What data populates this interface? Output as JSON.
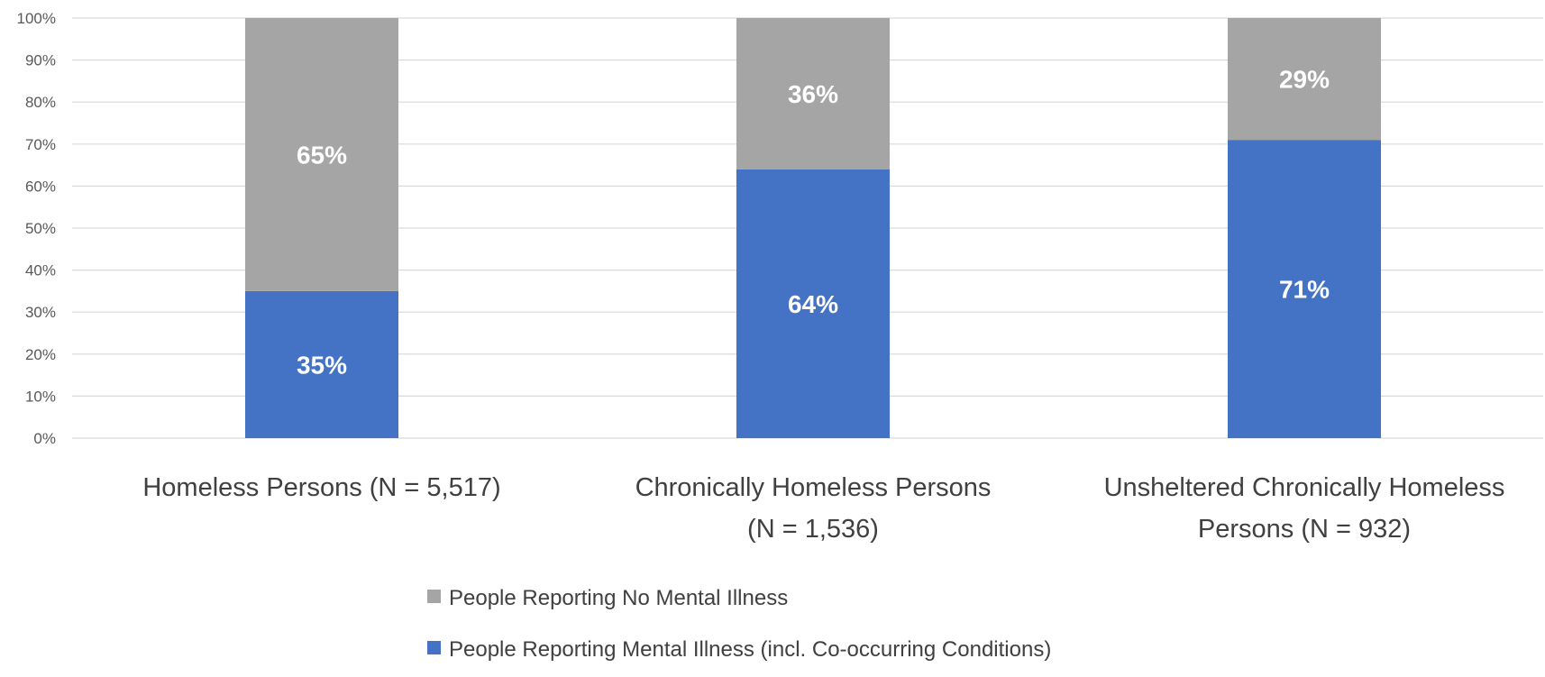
{
  "chart_data": {
    "type": "bar",
    "stacked": true,
    "categories": [
      [
        "Homeless Persons (N = 5,517)"
      ],
      [
        "Chronically Homeless Persons",
        "(N = 1,536)"
      ],
      [
        "Unsheltered Chronically Homeless",
        "Persons (N = 932)"
      ]
    ],
    "series": [
      {
        "name": "People Reporting Mental Illness (incl. Co-occurring Conditions)",
        "color": "#4472C4",
        "values": [
          35,
          64,
          71
        ],
        "labels": [
          "35%",
          "64%",
          "71%"
        ]
      },
      {
        "name": "People Reporting No Mental Illness",
        "color": "#A5A5A5",
        "values": [
          65,
          36,
          29
        ],
        "labels": [
          "65%",
          "36%",
          "29%"
        ]
      }
    ],
    "y_ticks": [
      "0%",
      "10%",
      "20%",
      "30%",
      "40%",
      "50%",
      "60%",
      "70%",
      "80%",
      "90%",
      "100%"
    ],
    "ylim": [
      0,
      100
    ],
    "grid": true,
    "gridline_color": "#D9D9D9",
    "legend_position": "bottom",
    "legend_order": [
      1,
      0
    ]
  }
}
